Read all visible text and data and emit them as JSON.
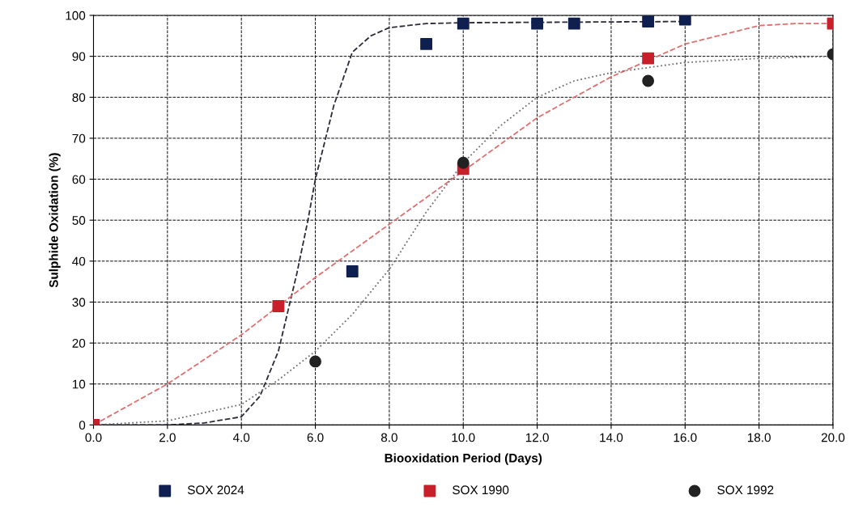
{
  "chart_data": {
    "type": "scatter",
    "xlabel": "Biooxidation Period (Days)",
    "ylabel": "Sulphide Oxidation (%)",
    "xlim": [
      0,
      20
    ],
    "ylim": [
      0,
      100
    ],
    "xticks": [
      {
        "value": 0,
        "label": "0.0"
      },
      {
        "value": 2,
        "label": "2.0"
      },
      {
        "value": 4,
        "label": "4.0"
      },
      {
        "value": 6,
        "label": "6.0"
      },
      {
        "value": 8,
        "label": "8.0"
      },
      {
        "value": 10,
        "label": "10.0"
      },
      {
        "value": 12,
        "label": "12.0"
      },
      {
        "value": 14,
        "label": "14.0"
      },
      {
        "value": 16,
        "label": "16.0"
      },
      {
        "value": 18,
        "label": "18.0"
      },
      {
        "value": 20,
        "label": "20.0"
      }
    ],
    "yticks": [
      0,
      10,
      20,
      30,
      40,
      50,
      60,
      70,
      80,
      90,
      100
    ],
    "grid": true,
    "legend": "bottom",
    "series": [
      {
        "type": "line",
        "color": "#2b2b3a",
        "line_style": "dashed",
        "marker": "none",
        "x": [
          0,
          2,
          3,
          4,
          4.5,
          5,
          5.5,
          5.8,
          6,
          6.5,
          7,
          7.5,
          8,
          9,
          10,
          12,
          14,
          16
        ],
        "values": [
          0,
          0,
          0.5,
          2,
          7,
          18,
          37,
          50,
          60,
          78,
          91,
          95,
          97,
          98,
          98.2,
          98.3,
          98.4,
          98.5
        ]
      },
      {
        "type": "line",
        "color": "#e07070",
        "line_style": "dashed",
        "marker": "none",
        "x": [
          0,
          2,
          4,
          6,
          8,
          10,
          12,
          14,
          16,
          18,
          19,
          20
        ],
        "values": [
          0,
          10,
          22,
          36,
          49,
          62,
          75,
          85,
          93,
          97.5,
          98,
          98
        ]
      },
      {
        "type": "line",
        "color": "#707070",
        "line_style": "dotted",
        "marker": "none",
        "x": [
          0,
          2,
          4,
          5,
          6,
          7,
          8,
          9,
          10,
          11,
          12,
          13,
          14,
          16,
          18,
          20
        ],
        "values": [
          0,
          1,
          5,
          11,
          18,
          27,
          38,
          52,
          64,
          73,
          80,
          84,
          86,
          88.5,
          89.5,
          90
        ]
      },
      {
        "name": "SOX 2024",
        "color": "#0f1f4f",
        "marker": "square",
        "x": [
          0,
          7,
          9,
          10,
          12,
          13,
          15,
          16
        ],
        "values": [
          0,
          37.5,
          93,
          98,
          98,
          98,
          98.5,
          99
        ]
      },
      {
        "name": "SOX 1990",
        "color": "#c8202a",
        "marker": "square",
        "x": [
          0,
          5,
          10,
          15,
          20
        ],
        "values": [
          0,
          29,
          62.5,
          89.5,
          98
        ]
      },
      {
        "name": "SOX 1992",
        "color": "#222222",
        "marker": "circle",
        "x": [
          6,
          10,
          15,
          20
        ],
        "values": [
          15.5,
          64,
          84,
          90.5
        ]
      }
    ]
  }
}
